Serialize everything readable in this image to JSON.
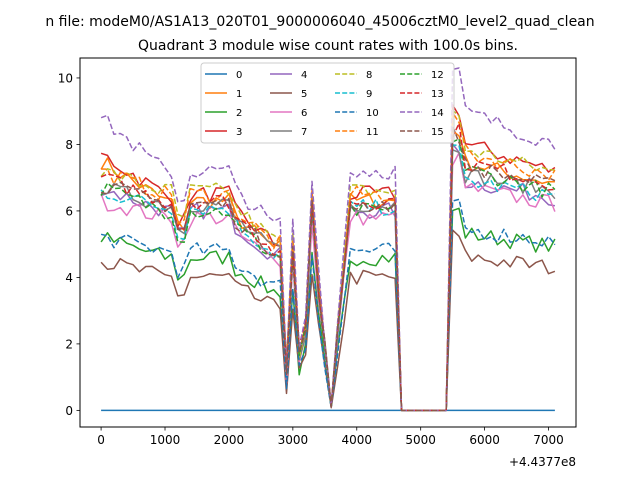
{
  "chart_data": {
    "type": "line",
    "suptitle": "n file: modeM0/AS1A13_020T01_9000006040_45006cztM0_level2_quad_clean",
    "title": "Quadrant 3 module wise count rates with 100.0s bins.",
    "xlabel": "",
    "ylabel": "",
    "x_offset_label": "+4.4377e8",
    "xlim": [
      -330,
      7430
    ],
    "ylim": [
      -0.5,
      10.6
    ],
    "xticks": [
      0,
      1000,
      2000,
      3000,
      4000,
      5000,
      6000,
      7000
    ],
    "yticks": [
      0,
      2,
      4,
      6,
      8,
      10
    ],
    "legend_position": "upper-center",
    "legend_columns": 4,
    "grid": false,
    "x_range": [
      0,
      7100
    ],
    "x_step": 100,
    "gap_range": [
      4700,
      5400
    ],
    "series": [
      {
        "name": "0",
        "color": "#1f77b4",
        "style": "solid",
        "base": 0.0,
        "front": 0.0,
        "after": 0.0
      },
      {
        "name": "1",
        "color": "#ff7f0e",
        "style": "solid",
        "base": 6.3,
        "front": 7.5,
        "after": 7.6
      },
      {
        "name": "2",
        "color": "#2ca02c",
        "style": "solid",
        "base": 4.6,
        "front": 5.2,
        "after": 5.4
      },
      {
        "name": "3",
        "color": "#d62728",
        "style": "solid",
        "base": 6.5,
        "front": 7.7,
        "after": 8.2
      },
      {
        "name": "4",
        "color": "#9467bd",
        "style": "solid",
        "base": 6.0,
        "front": 6.7,
        "after": 7.0
      },
      {
        "name": "5",
        "color": "#8c564b",
        "style": "solid",
        "base": 4.0,
        "front": 4.5,
        "after": 4.7
      },
      {
        "name": "6",
        "color": "#e377c2",
        "style": "solid",
        "base": 5.8,
        "front": 6.3,
        "after": 6.8
      },
      {
        "name": "7",
        "color": "#7f7f7f",
        "style": "solid",
        "base": 6.2,
        "front": 6.7,
        "after": 7.2
      },
      {
        "name": "8",
        "color": "#bcbd22",
        "style": "dashed",
        "base": 6.6,
        "front": 7.2,
        "after": 8.0
      },
      {
        "name": "9",
        "color": "#17becf",
        "style": "dashed",
        "base": 6.1,
        "front": 6.6,
        "after": 7.0
      },
      {
        "name": "10",
        "color": "#1f77b4",
        "style": "dashed",
        "base": 4.8,
        "front": 5.2,
        "after": 5.5
      },
      {
        "name": "11",
        "color": "#ff7f0e",
        "style": "dashed",
        "base": 6.5,
        "front": 7.2,
        "after": 7.9
      },
      {
        "name": "12",
        "color": "#2ca02c",
        "style": "dashed",
        "base": 6.0,
        "front": 6.7,
        "after": 7.4
      },
      {
        "name": "13",
        "color": "#d62728",
        "style": "dashed",
        "base": 6.3,
        "front": 7.0,
        "after": 7.6
      },
      {
        "name": "14",
        "color": "#9467bd",
        "style": "dashed",
        "base": 7.2,
        "front": 8.8,
        "after": 9.2
      },
      {
        "name": "15",
        "color": "#8c564b",
        "style": "dashed",
        "base": 6.2,
        "front": 6.8,
        "after": 7.5
      }
    ]
  }
}
